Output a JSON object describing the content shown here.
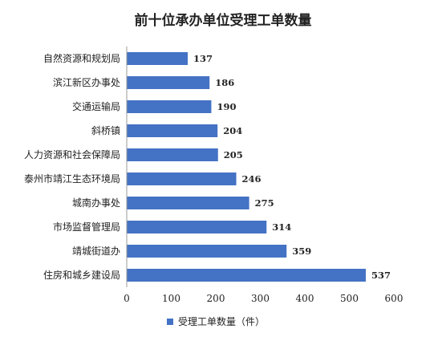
{
  "chart_data": {
    "type": "bar",
    "orientation": "horizontal",
    "title": "前十位承办单位受理工单数量",
    "categories": [
      "自然资源和规划局",
      "滨江新区办事处",
      "交通运输局",
      "斜桥镇",
      "人力资源和社会保障局",
      "泰州市靖江生态环境局",
      "城南办事处",
      "市场监督管理局",
      "靖城街道办",
      "住房和城乡建设局"
    ],
    "series": [
      {
        "name": "受理工单数量（件）",
        "values": [
          137,
          186,
          190,
          204,
          205,
          246,
          275,
          314,
          359,
          537
        ]
      }
    ],
    "xlim": [
      0,
      600
    ],
    "xticks": [
      "0",
      "100",
      "200",
      "300",
      "400",
      "500",
      "600"
    ],
    "legend_position": "bottom",
    "grid": false,
    "bar_color": "#4472C4"
  }
}
